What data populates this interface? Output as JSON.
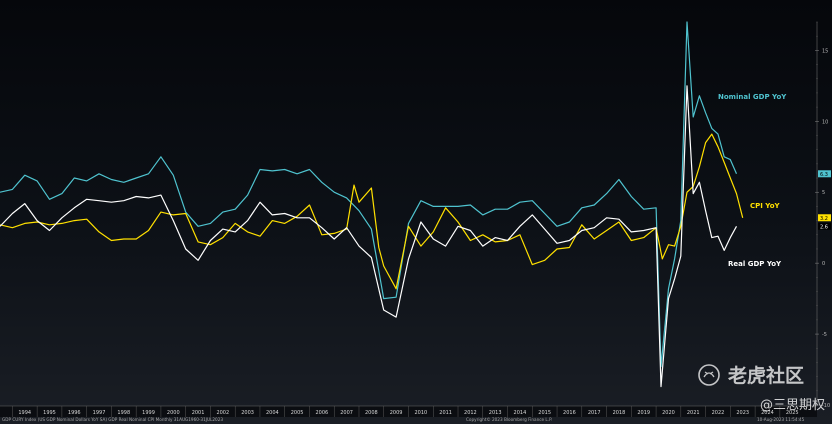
{
  "chart_data": {
    "type": "line",
    "title": "",
    "xlabel": "",
    "ylabel": "",
    "x_unit": "year",
    "xlim": [
      1993.5,
      2026.5
    ],
    "ylim": [
      -10,
      17
    ],
    "y_ticks": [
      -10,
      -5,
      0,
      5,
      10,
      15
    ],
    "y_tick_labels": [
      "-10",
      "-5",
      "0",
      "5",
      "10",
      "15"
    ],
    "x_tick_labels": [
      "1994",
      "1995",
      "1996",
      "1997",
      "1998",
      "1999",
      "2000",
      "2001",
      "2002",
      "2003",
      "2004",
      "2005",
      "2006",
      "2007",
      "2008",
      "2009",
      "2010",
      "2011",
      "2012",
      "2013",
      "2014",
      "2015",
      "2016",
      "2017",
      "2018",
      "2019",
      "2020",
      "2021",
      "2022",
      "2023",
      "2024",
      "2025"
    ],
    "grid": false,
    "legend": "inline labels at line ends",
    "colors": {
      "nominal": "#4fc3cf",
      "cpi": "#ffe000",
      "real": "#ffffff"
    },
    "series": [
      {
        "name": "Nominal GDP YoY",
        "color": "#4fc3cf",
        "last_value": "6.3",
        "points": [
          [
            1993.5,
            5.0
          ],
          [
            1994.0,
            5.2
          ],
          [
            1994.5,
            6.2
          ],
          [
            1995.0,
            5.8
          ],
          [
            1995.5,
            4.5
          ],
          [
            1996.0,
            4.9
          ],
          [
            1996.5,
            6.0
          ],
          [
            1997.0,
            5.8
          ],
          [
            1997.5,
            6.3
          ],
          [
            1998.0,
            5.9
          ],
          [
            1998.5,
            5.7
          ],
          [
            1999.0,
            6.0
          ],
          [
            1999.5,
            6.3
          ],
          [
            2000.0,
            7.5
          ],
          [
            2000.5,
            6.2
          ],
          [
            2001.0,
            3.6
          ],
          [
            2001.5,
            2.6
          ],
          [
            2002.0,
            2.8
          ],
          [
            2002.5,
            3.6
          ],
          [
            2003.0,
            3.8
          ],
          [
            2003.5,
            4.8
          ],
          [
            2004.0,
            6.6
          ],
          [
            2004.5,
            6.5
          ],
          [
            2005.0,
            6.6
          ],
          [
            2005.5,
            6.3
          ],
          [
            2006.0,
            6.6
          ],
          [
            2006.5,
            5.7
          ],
          [
            2007.0,
            5.0
          ],
          [
            2007.5,
            4.6
          ],
          [
            2008.0,
            3.7
          ],
          [
            2008.5,
            2.4
          ],
          [
            2009.0,
            -2.5
          ],
          [
            2009.5,
            -2.4
          ],
          [
            2010.0,
            2.8
          ],
          [
            2010.5,
            4.4
          ],
          [
            2011.0,
            4.0
          ],
          [
            2011.5,
            4.0
          ],
          [
            2012.0,
            4.0
          ],
          [
            2012.5,
            4.1
          ],
          [
            2013.0,
            3.4
          ],
          [
            2013.5,
            3.8
          ],
          [
            2014.0,
            3.8
          ],
          [
            2014.5,
            4.3
          ],
          [
            2015.0,
            4.4
          ],
          [
            2015.5,
            3.5
          ],
          [
            2016.0,
            2.6
          ],
          [
            2016.5,
            2.9
          ],
          [
            2017.0,
            3.9
          ],
          [
            2017.5,
            4.1
          ],
          [
            2018.0,
            4.9
          ],
          [
            2018.5,
            5.9
          ],
          [
            2019.0,
            4.7
          ],
          [
            2019.5,
            3.8
          ],
          [
            2020.0,
            3.9
          ],
          [
            2020.2,
            -7.3
          ],
          [
            2020.5,
            -1.8
          ],
          [
            2020.75,
            0.3
          ],
          [
            2021.0,
            3.0
          ],
          [
            2021.25,
            17.0
          ],
          [
            2021.5,
            10.3
          ],
          [
            2021.75,
            11.8
          ],
          [
            2022.0,
            10.6
          ],
          [
            2022.25,
            9.5
          ],
          [
            2022.5,
            9.1
          ],
          [
            2022.75,
            7.5
          ],
          [
            2023.0,
            7.3
          ],
          [
            2023.25,
            6.3
          ]
        ]
      },
      {
        "name": "CPI YoY",
        "color": "#ffe000",
        "last_value": "3.2",
        "points": [
          [
            1993.5,
            2.7
          ],
          [
            1994.0,
            2.5
          ],
          [
            1994.5,
            2.8
          ],
          [
            1995.0,
            2.9
          ],
          [
            1995.5,
            2.7
          ],
          [
            1996.0,
            2.8
          ],
          [
            1996.5,
            3.0
          ],
          [
            1997.0,
            3.1
          ],
          [
            1997.5,
            2.2
          ],
          [
            1998.0,
            1.6
          ],
          [
            1998.5,
            1.7
          ],
          [
            1999.0,
            1.7
          ],
          [
            1999.5,
            2.3
          ],
          [
            2000.0,
            3.6
          ],
          [
            2000.5,
            3.4
          ],
          [
            2001.0,
            3.5
          ],
          [
            2001.5,
            1.5
          ],
          [
            2002.0,
            1.3
          ],
          [
            2002.5,
            1.8
          ],
          [
            2003.0,
            2.8
          ],
          [
            2003.5,
            2.2
          ],
          [
            2004.0,
            1.9
          ],
          [
            2004.5,
            3.0
          ],
          [
            2005.0,
            2.8
          ],
          [
            2005.5,
            3.3
          ],
          [
            2006.0,
            4.1
          ],
          [
            2006.5,
            2.0
          ],
          [
            2007.0,
            2.1
          ],
          [
            2007.5,
            2.4
          ],
          [
            2007.8,
            5.5
          ],
          [
            2008.0,
            4.3
          ],
          [
            2008.5,
            5.3
          ],
          [
            2008.8,
            1.1
          ],
          [
            2009.0,
            -0.2
          ],
          [
            2009.5,
            -1.8
          ],
          [
            2010.0,
            2.6
          ],
          [
            2010.5,
            1.2
          ],
          [
            2011.0,
            2.2
          ],
          [
            2011.5,
            3.9
          ],
          [
            2012.0,
            2.9
          ],
          [
            2012.5,
            1.6
          ],
          [
            2013.0,
            2.0
          ],
          [
            2013.5,
            1.5
          ],
          [
            2014.0,
            1.6
          ],
          [
            2014.5,
            2.0
          ],
          [
            2015.0,
            -0.1
          ],
          [
            2015.5,
            0.2
          ],
          [
            2016.0,
            1.0
          ],
          [
            2016.5,
            1.1
          ],
          [
            2017.0,
            2.7
          ],
          [
            2017.5,
            1.7
          ],
          [
            2018.0,
            2.3
          ],
          [
            2018.5,
            2.9
          ],
          [
            2019.0,
            1.6
          ],
          [
            2019.5,
            1.8
          ],
          [
            2020.0,
            2.5
          ],
          [
            2020.25,
            0.3
          ],
          [
            2020.5,
            1.3
          ],
          [
            2020.75,
            1.2
          ],
          [
            2021.0,
            2.6
          ],
          [
            2021.25,
            5.0
          ],
          [
            2021.5,
            5.4
          ],
          [
            2021.75,
            6.8
          ],
          [
            2022.0,
            8.5
          ],
          [
            2022.25,
            9.1
          ],
          [
            2022.5,
            8.2
          ],
          [
            2022.75,
            7.1
          ],
          [
            2023.0,
            6.0
          ],
          [
            2023.25,
            4.9
          ],
          [
            2023.5,
            3.2
          ]
        ]
      },
      {
        "name": "Real GDP YoY",
        "color": "#ffffff",
        "last_value": "2.6",
        "points": [
          [
            1993.5,
            2.6
          ],
          [
            1994.0,
            3.5
          ],
          [
            1994.5,
            4.2
          ],
          [
            1995.0,
            3.0
          ],
          [
            1995.5,
            2.3
          ],
          [
            1996.0,
            3.2
          ],
          [
            1996.5,
            3.9
          ],
          [
            1997.0,
            4.5
          ],
          [
            1997.5,
            4.4
          ],
          [
            1998.0,
            4.3
          ],
          [
            1998.5,
            4.4
          ],
          [
            1999.0,
            4.7
          ],
          [
            1999.5,
            4.6
          ],
          [
            2000.0,
            4.8
          ],
          [
            2000.5,
            3.0
          ],
          [
            2001.0,
            1.0
          ],
          [
            2001.5,
            0.2
          ],
          [
            2002.0,
            1.6
          ],
          [
            2002.5,
            2.4
          ],
          [
            2003.0,
            2.2
          ],
          [
            2003.5,
            3.0
          ],
          [
            2004.0,
            4.3
          ],
          [
            2004.5,
            3.4
          ],
          [
            2005.0,
            3.5
          ],
          [
            2005.5,
            3.2
          ],
          [
            2006.0,
            3.2
          ],
          [
            2006.5,
            2.5
          ],
          [
            2007.0,
            1.7
          ],
          [
            2007.5,
            2.5
          ],
          [
            2008.0,
            1.2
          ],
          [
            2008.5,
            0.4
          ],
          [
            2009.0,
            -3.3
          ],
          [
            2009.5,
            -3.8
          ],
          [
            2010.0,
            0.3
          ],
          [
            2010.5,
            2.9
          ],
          [
            2011.0,
            1.7
          ],
          [
            2011.5,
            1.2
          ],
          [
            2012.0,
            2.6
          ],
          [
            2012.5,
            2.3
          ],
          [
            2013.0,
            1.2
          ],
          [
            2013.5,
            1.8
          ],
          [
            2014.0,
            1.6
          ],
          [
            2014.5,
            2.6
          ],
          [
            2015.0,
            3.4
          ],
          [
            2015.5,
            2.4
          ],
          [
            2016.0,
            1.4
          ],
          [
            2016.5,
            1.6
          ],
          [
            2017.0,
            2.3
          ],
          [
            2017.5,
            2.5
          ],
          [
            2018.0,
            3.2
          ],
          [
            2018.5,
            3.1
          ],
          [
            2019.0,
            2.2
          ],
          [
            2019.5,
            2.3
          ],
          [
            2020.0,
            2.5
          ],
          [
            2020.2,
            -8.7
          ],
          [
            2020.5,
            -2.5
          ],
          [
            2020.75,
            -1.1
          ],
          [
            2021.0,
            0.5
          ],
          [
            2021.25,
            12.5
          ],
          [
            2021.5,
            4.9
          ],
          [
            2021.75,
            5.7
          ],
          [
            2022.0,
            3.7
          ],
          [
            2022.25,
            1.8
          ],
          [
            2022.5,
            1.9
          ],
          [
            2022.75,
            0.9
          ],
          [
            2023.0,
            1.8
          ],
          [
            2023.25,
            2.6
          ]
        ]
      }
    ],
    "annotations": [
      "Nominal GDP YoY",
      "CPI YoY",
      "Real GDP YoY"
    ]
  },
  "footer": {
    "left": "GDP CURY Index (US GDP Nominal Dollars YoY SA) GDP Real Nominal CPI   Monthly 31AUG1960-31JUL2023",
    "center": "Copyright© 2023 Bloomberg Finance L.P.",
    "right": "10-Aug-2023 11:54:45"
  },
  "watermark": {
    "brand": "老虎社区",
    "user": "@三思期权"
  }
}
